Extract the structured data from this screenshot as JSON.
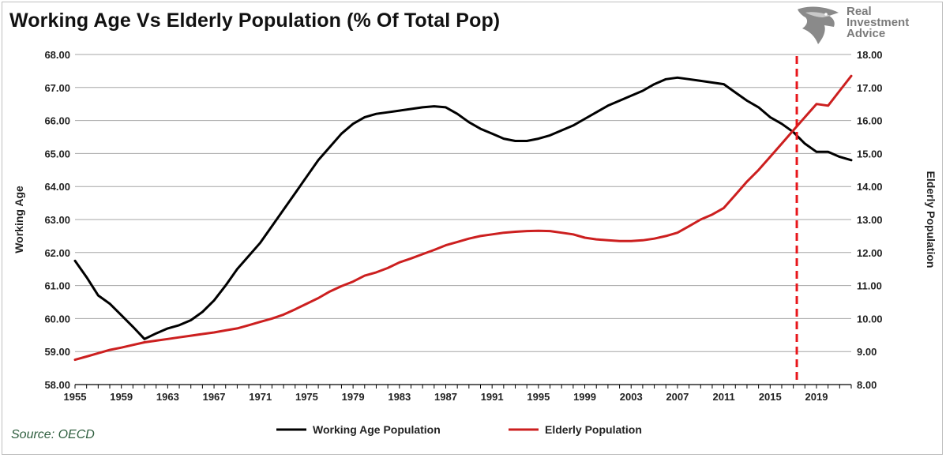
{
  "header": {
    "title": "Working Age Vs Elderly Population (% Of Total Pop)"
  },
  "logo": {
    "icon": "eagle-head-icon",
    "line1": "Real",
    "line2": "Investment",
    "line3": "Advice"
  },
  "source": "Source: OECD",
  "colors": {
    "working": "#000000",
    "elderly": "#cc1f1f",
    "marker": "#e8161b",
    "grid": "#a6a6a6"
  },
  "chart_data": {
    "type": "line",
    "title": "Working Age Vs Elderly Population (% Of Total Pop)",
    "ylabel": "Working Age",
    "y2label": "Elderly Population",
    "xlim": [
      1955,
      2022
    ],
    "ylim": [
      58,
      68
    ],
    "y2lim": [
      8,
      18
    ],
    "yticks": [
      "58.00",
      "59.00",
      "60.00",
      "61.00",
      "62.00",
      "63.00",
      "64.00",
      "65.00",
      "66.00",
      "67.00",
      "68.00"
    ],
    "y2ticks": [
      "8.00",
      "9.00",
      "10.00",
      "11.00",
      "12.00",
      "13.00",
      "14.00",
      "15.00",
      "16.00",
      "17.00",
      "18.00"
    ],
    "xticks": [
      1955,
      1959,
      1963,
      1967,
      1971,
      1975,
      1979,
      1983,
      1987,
      1991,
      1995,
      1999,
      2003,
      2007,
      2011,
      2015,
      2019
    ],
    "grid": "horizontal",
    "legend_position": "bottom",
    "vertical_marker": {
      "x": 2017.3,
      "style": "dashed"
    },
    "series": [
      {
        "name": "Working Age Population",
        "axis": "left",
        "x": [
          1955,
          1956,
          1957,
          1958,
          1959,
          1960,
          1961,
          1962,
          1963,
          1964,
          1965,
          1966,
          1967,
          1968,
          1969,
          1970,
          1971,
          1972,
          1973,
          1974,
          1975,
          1976,
          1977,
          1978,
          1979,
          1980,
          1981,
          1982,
          1983,
          1984,
          1985,
          1986,
          1987,
          1988,
          1989,
          1990,
          1991,
          1992,
          1993,
          1994,
          1995,
          1996,
          1997,
          1998,
          1999,
          2000,
          2001,
          2002,
          2003,
          2004,
          2005,
          2006,
          2007,
          2008,
          2009,
          2010,
          2011,
          2012,
          2013,
          2014,
          2015,
          2016,
          2017,
          2018,
          2019,
          2020,
          2021,
          2022
        ],
        "values": [
          61.75,
          61.25,
          60.7,
          60.45,
          60.1,
          59.75,
          59.38,
          59.55,
          59.7,
          59.8,
          59.95,
          60.2,
          60.55,
          61.0,
          61.5,
          61.9,
          62.3,
          62.8,
          63.3,
          63.8,
          64.3,
          64.8,
          65.2,
          65.6,
          65.9,
          66.1,
          66.2,
          66.25,
          66.3,
          66.35,
          66.4,
          66.43,
          66.4,
          66.2,
          65.95,
          65.75,
          65.6,
          65.45,
          65.38,
          65.38,
          65.45,
          65.55,
          65.7,
          65.85,
          66.05,
          66.25,
          66.45,
          66.6,
          66.75,
          66.9,
          67.1,
          67.25,
          67.3,
          67.25,
          67.2,
          67.15,
          67.1,
          66.85,
          66.6,
          66.4,
          66.1,
          65.9,
          65.65,
          65.3,
          65.05,
          65.05,
          64.9,
          64.8
        ]
      },
      {
        "name": "Elderly Population",
        "axis": "right",
        "x": [
          1955,
          1956,
          1957,
          1958,
          1959,
          1960,
          1961,
          1962,
          1963,
          1964,
          1965,
          1966,
          1967,
          1968,
          1969,
          1970,
          1971,
          1972,
          1973,
          1974,
          1975,
          1976,
          1977,
          1978,
          1979,
          1980,
          1981,
          1982,
          1983,
          1984,
          1985,
          1986,
          1987,
          1988,
          1989,
          1990,
          1991,
          1992,
          1993,
          1994,
          1995,
          1996,
          1997,
          1998,
          1999,
          2000,
          2001,
          2002,
          2003,
          2004,
          2005,
          2006,
          2007,
          2008,
          2009,
          2010,
          2011,
          2012,
          2013,
          2014,
          2015,
          2016,
          2017,
          2018,
          2019,
          2020,
          2021,
          2022
        ],
        "values": [
          8.75,
          8.85,
          8.95,
          9.05,
          9.12,
          9.2,
          9.28,
          9.33,
          9.38,
          9.43,
          9.48,
          9.53,
          9.58,
          9.64,
          9.7,
          9.8,
          9.9,
          10.0,
          10.12,
          10.28,
          10.45,
          10.62,
          10.82,
          10.98,
          11.12,
          11.3,
          11.4,
          11.53,
          11.7,
          11.82,
          11.95,
          12.08,
          12.22,
          12.32,
          12.42,
          12.5,
          12.55,
          12.6,
          12.63,
          12.65,
          12.66,
          12.65,
          12.6,
          12.55,
          12.45,
          12.4,
          12.37,
          12.35,
          12.35,
          12.37,
          12.42,
          12.5,
          12.6,
          12.8,
          13.0,
          13.15,
          13.35,
          13.75,
          14.15,
          14.5,
          14.9,
          15.3,
          15.7,
          16.1,
          16.5,
          16.45,
          16.9,
          17.35
        ]
      }
    ]
  }
}
